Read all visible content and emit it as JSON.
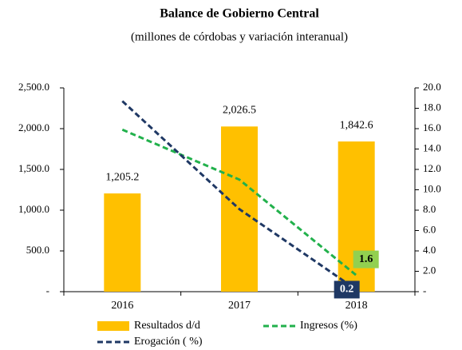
{
  "chart_data": {
    "type": "bar",
    "title": "Balance de Gobierno Central",
    "subtitle": "(millones de córdobas y variación interanual)",
    "categories": [
      "2016",
      "2017",
      "2018"
    ],
    "series": [
      {
        "name": "Resultados d/d",
        "type": "bar",
        "color": "#ffc000",
        "values": [
          1205.2,
          2026.5,
          1842.6
        ],
        "value_labels": [
          "1,205.2",
          "2,026.5",
          "1,842.6"
        ]
      },
      {
        "name": "Ingresos (%)",
        "type": "line",
        "axis": "y2",
        "color": "#22b14c",
        "label_fill": "#92d050",
        "label_color": "#000000",
        "values": [
          15.9,
          11.0,
          1.6
        ],
        "value_labels": [
          null,
          null,
          "1.6"
        ]
      },
      {
        "name": "Erogación ( %)",
        "type": "line",
        "axis": "y2",
        "color": "#1f3864",
        "label_fill": "#1f3864",
        "label_color": "#ffffff",
        "values": [
          18.7,
          8.1,
          0.2
        ],
        "value_labels": [
          null,
          null,
          "0.2"
        ]
      }
    ],
    "ylim": [
      0,
      2500
    ],
    "yticks": [
      {
        "value": 0,
        "label": "-"
      },
      {
        "value": 500,
        "label": "500.0"
      },
      {
        "value": 1000,
        "label": "1,000.0"
      },
      {
        "value": 1500,
        "label": "1,500.0"
      },
      {
        "value": 2000,
        "label": "2,000.0"
      },
      {
        "value": 2500,
        "label": "2,500.0"
      }
    ],
    "y2lim": [
      0,
      20
    ],
    "y2ticks": [
      {
        "value": 0,
        "label": "-"
      },
      {
        "value": 2,
        "label": "2.0"
      },
      {
        "value": 4,
        "label": "4.0"
      },
      {
        "value": 6,
        "label": "6.0"
      },
      {
        "value": 8,
        "label": "8.0"
      },
      {
        "value": 10,
        "label": "10.0"
      },
      {
        "value": 12,
        "label": "12.0"
      },
      {
        "value": 14,
        "label": "14.0"
      },
      {
        "value": 16,
        "label": "16.0"
      },
      {
        "value": 18,
        "label": "18.0"
      },
      {
        "value": 20,
        "label": "20.0"
      }
    ],
    "grid": false
  }
}
